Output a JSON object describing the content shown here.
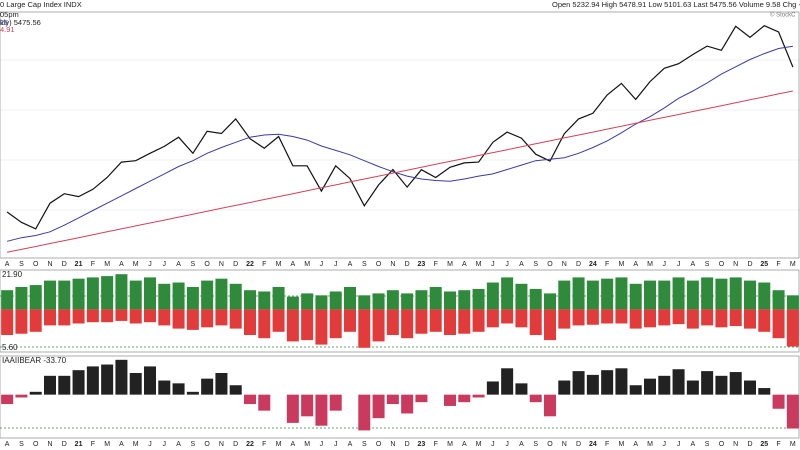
{
  "header": {
    "title": "0 Large Cap Index INDX",
    "quote": "Open 5232.94 High 5478.91 Low 5101.63 Last 5475.56 Volume 9.58 Chg +192.98 (+",
    "lines": [
      "05pm",
      "kly) 5475.56",
      "26",
      "4.91"
    ],
    "credit": "© StockC"
  },
  "chart_data": [
    {
      "type": "line",
      "categories": [
        "A",
        "S",
        "O",
        "N",
        "D",
        "21",
        "F",
        "M",
        "A",
        "M",
        "J",
        "J",
        "A",
        "S",
        "O",
        "N",
        "D",
        "22",
        "F",
        "M",
        "A",
        "M",
        "J",
        "J",
        "A",
        "S",
        "O",
        "N",
        "D",
        "23",
        "F",
        "M",
        "A",
        "M",
        "J",
        "J",
        "A",
        "S",
        "O",
        "N",
        "D",
        "24",
        "F",
        "M",
        "A",
        "M",
        "J",
        "J",
        "A",
        "S",
        "O",
        "N",
        "D",
        "25",
        "F",
        "M"
      ],
      "ylim": [
        2900,
        6200
      ],
      "series": [
        {
          "name": "kly) 5475.56",
          "color": "#111111",
          "values": [
            3500,
            3360,
            3270,
            3620,
            3750,
            3710,
            3810,
            3970,
            4180,
            4200,
            4300,
            4395,
            4520,
            4300,
            4600,
            4570,
            4770,
            4500,
            4370,
            4530,
            4130,
            4130,
            3785,
            4130,
            3955,
            3585,
            3870,
            4080,
            3840,
            4077,
            3970,
            4109,
            4169,
            4180,
            4450,
            4589,
            4508,
            4288,
            4194,
            4568,
            4770,
            4846,
            5096,
            5254,
            5036,
            5278,
            5460,
            5522,
            5648,
            5762,
            5705,
            6032,
            5882,
            6040,
            5955,
            5476
          ]
        },
        {
          "name": "26",
          "color": "#3a3aa8",
          "values": [
            3100,
            3150,
            3180,
            3230,
            3320,
            3420,
            3520,
            3620,
            3720,
            3820,
            3920,
            4020,
            4120,
            4200,
            4300,
            4380,
            4450,
            4520,
            4550,
            4560,
            4530,
            4480,
            4400,
            4340,
            4280,
            4200,
            4120,
            4050,
            3990,
            3950,
            3930,
            3920,
            3950,
            3990,
            4020,
            4080,
            4140,
            4200,
            4220,
            4240,
            4300,
            4380,
            4470,
            4580,
            4700,
            4800,
            4920,
            5050,
            5150,
            5260,
            5380,
            5480,
            5580,
            5660,
            5730,
            5760
          ]
        },
        {
          "name": "4.91",
          "color": "#d04458",
          "values": [
            2950,
            2990,
            3030,
            3070,
            3110,
            3150,
            3190,
            3230,
            3270,
            3310,
            3350,
            3390,
            3430,
            3470,
            3510,
            3550,
            3590,
            3630,
            3670,
            3710,
            3750,
            3790,
            3830,
            3870,
            3910,
            3950,
            3990,
            4030,
            4070,
            4110,
            4150,
            4190,
            4230,
            4270,
            4310,
            4350,
            4390,
            4430,
            4470,
            4510,
            4550,
            4590,
            4630,
            4670,
            4710,
            4750,
            4790,
            4830,
            4870,
            4910,
            4950,
            4990,
            5030,
            5070,
            5110,
            5150
          ]
        }
      ]
    },
    {
      "type": "bar",
      "ylim": [
        -65,
        60
      ],
      "series": [
        {
          "name": "21.90",
          "color": "#2f8a3c",
          "values": [
            30,
            35,
            38,
            45,
            45,
            48,
            50,
            52,
            55,
            45,
            50,
            40,
            42,
            35,
            45,
            48,
            40,
            30,
            28,
            35,
            20,
            25,
            22,
            28,
            35,
            22,
            25,
            30,
            25,
            30,
            35,
            28,
            30,
            32,
            42,
            50,
            40,
            32,
            25,
            45,
            50,
            45,
            48,
            50,
            40,
            45,
            45,
            50,
            45,
            50,
            48,
            50,
            45,
            42,
            30,
            22
          ]
        },
        {
          "name": "5.60",
          "color": "#e23b3b",
          "values": [
            -40,
            -38,
            -35,
            -25,
            -25,
            -22,
            -20,
            -20,
            -18,
            -22,
            -20,
            -25,
            -30,
            -32,
            -28,
            -25,
            -30,
            -40,
            -45,
            -35,
            -50,
            -48,
            -55,
            -45,
            -35,
            -60,
            -50,
            -40,
            -45,
            -38,
            -35,
            -40,
            -38,
            -35,
            -28,
            -22,
            -28,
            -40,
            -48,
            -30,
            -25,
            -24,
            -22,
            -22,
            -30,
            -28,
            -25,
            -23,
            -30,
            -25,
            -28,
            -26,
            -30,
            -35,
            -45,
            -58
          ]
        }
      ]
    },
    {
      "type": "bar",
      "title": "IAAIIBEAR -33.70",
      "categories": [
        "A",
        "S",
        "O",
        "N",
        "D",
        "21",
        "F",
        "M",
        "A",
        "M",
        "J",
        "J",
        "A",
        "S",
        "O",
        "N",
        "D",
        "22",
        "F",
        "M",
        "A",
        "M",
        "J",
        "J",
        "A",
        "S",
        "O",
        "N",
        "D",
        "23",
        "F",
        "M",
        "A",
        "M",
        "J",
        "J",
        "A",
        "S",
        "O",
        "N",
        "D",
        "24",
        "F",
        "M",
        "A",
        "M",
        "J",
        "J",
        "A",
        "S",
        "O",
        "N",
        "D",
        "25",
        "F",
        "M"
      ],
      "ylim": [
        -45,
        40
      ],
      "colors": {
        "positive": "#222222",
        "negative": "#c93a5e"
      },
      "values": [
        -10,
        -3,
        3,
        20,
        20,
        26,
        30,
        32,
        37,
        23,
        30,
        15,
        12,
        3,
        17,
        23,
        10,
        -10,
        -17,
        0,
        -30,
        -23,
        -33,
        -17,
        0,
        -38,
        -25,
        -10,
        -20,
        -8,
        0,
        -12,
        -8,
        -3,
        14,
        28,
        12,
        -8,
        -23,
        15,
        25,
        21,
        26,
        28,
        10,
        17,
        20,
        27,
        15,
        25,
        20,
        24,
        15,
        7,
        -15,
        -36
      ]
    }
  ]
}
